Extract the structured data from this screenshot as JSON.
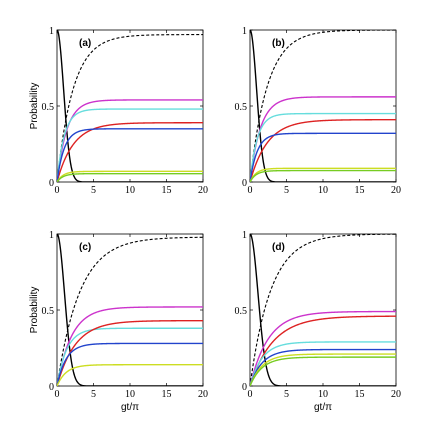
{
  "figure": {
    "ylabel": "Probability",
    "xlabel": "gt/π"
  },
  "chart_data": [
    {
      "type": "line",
      "panel": "(a)",
      "ylabel": "Probability",
      "xlabel": "",
      "xlim": [
        0,
        20
      ],
      "ylim": [
        0,
        1
      ],
      "xticks": [
        0,
        5,
        10,
        15,
        20
      ],
      "yticks": [
        0,
        0.5,
        1
      ],
      "series": [
        {
          "color": "#000000",
          "style": "solid",
          "kind": "decay",
          "plateau": 0.0,
          "rate": 1.1
        },
        {
          "color": "#000000",
          "style": "dotted",
          "kind": "rise",
          "plateau": 0.97,
          "rate": 0.45
        },
        {
          "color": "#cc33cc",
          "style": "solid",
          "kind": "rise",
          "plateau": 0.54,
          "rate": 0.75
        },
        {
          "color": "#66dddd",
          "style": "solid",
          "kind": "rise",
          "plateau": 0.48,
          "rate": 1.0
        },
        {
          "color": "#dd2222",
          "style": "solid",
          "kind": "rise",
          "plateau": 0.39,
          "rate": 0.45
        },
        {
          "color": "#2244cc",
          "style": "solid",
          "kind": "rise",
          "plateau": 0.35,
          "rate": 1.0
        },
        {
          "color": "#ccdd22",
          "style": "solid",
          "kind": "rise",
          "plateau": 0.07,
          "rate": 1.2
        },
        {
          "color": "#77cc22",
          "style": "solid",
          "kind": "rise",
          "plateau": 0.055,
          "rate": 1.2
        }
      ]
    },
    {
      "type": "line",
      "panel": "(b)",
      "ylabel": "",
      "xlabel": "",
      "xlim": [
        0,
        20
      ],
      "ylim": [
        0,
        1
      ],
      "xticks": [
        0,
        5,
        10,
        15,
        20
      ],
      "yticks": [
        0,
        0.5,
        1
      ],
      "series": [
        {
          "color": "#000000",
          "style": "solid",
          "kind": "decay",
          "plateau": 0.0,
          "rate": 1.1
        },
        {
          "color": "#000000",
          "style": "dotted",
          "kind": "rise",
          "plateau": 1.0,
          "rate": 0.42
        },
        {
          "color": "#cc33cc",
          "style": "solid",
          "kind": "rise",
          "plateau": 0.56,
          "rate": 0.7
        },
        {
          "color": "#66dddd",
          "style": "solid",
          "kind": "rise",
          "plateau": 0.45,
          "rate": 1.0
        },
        {
          "color": "#dd2222",
          "style": "solid",
          "kind": "rise",
          "plateau": 0.41,
          "rate": 0.42
        },
        {
          "color": "#2244cc",
          "style": "solid",
          "kind": "rise",
          "plateau": 0.32,
          "rate": 1.0
        },
        {
          "color": "#ccdd22",
          "style": "solid",
          "kind": "rise",
          "plateau": 0.09,
          "rate": 1.2
        },
        {
          "color": "#77cc22",
          "style": "solid",
          "kind": "rise",
          "plateau": 0.075,
          "rate": 1.2
        }
      ]
    },
    {
      "type": "line",
      "panel": "(c)",
      "ylabel": "Probability",
      "xlabel": "gt/π",
      "xlim": [
        0,
        20
      ],
      "ylim": [
        0,
        1
      ],
      "xticks": [
        0,
        5,
        10,
        15,
        20
      ],
      "yticks": [
        0,
        0.5,
        1
      ],
      "series": [
        {
          "color": "#000000",
          "style": "solid",
          "kind": "decay",
          "plateau": 0.0,
          "rate": 0.85
        },
        {
          "color": "#000000",
          "style": "dotted",
          "kind": "rise",
          "plateau": 0.98,
          "rate": 0.32
        },
        {
          "color": "#cc33cc",
          "style": "solid",
          "kind": "rise",
          "plateau": 0.52,
          "rate": 0.5
        },
        {
          "color": "#66dddd",
          "style": "solid",
          "kind": "rise",
          "plateau": 0.38,
          "rate": 0.75
        },
        {
          "color": "#dd2222",
          "style": "solid",
          "kind": "rise",
          "plateau": 0.43,
          "rate": 0.4
        },
        {
          "color": "#2244cc",
          "style": "solid",
          "kind": "rise",
          "plateau": 0.28,
          "rate": 0.8
        },
        {
          "color": "#ccdd22",
          "style": "solid",
          "kind": "rise",
          "plateau": 0.14,
          "rate": 0.8
        }
      ]
    },
    {
      "type": "line",
      "panel": "(d)",
      "ylabel": "",
      "xlabel": "gt/π",
      "xlim": [
        0,
        20
      ],
      "ylim": [
        0,
        1
      ],
      "xticks": [
        0,
        5,
        10,
        15,
        20
      ],
      "yticks": [
        0,
        0.5,
        1
      ],
      "series": [
        {
          "color": "#000000",
          "style": "solid",
          "kind": "decay",
          "plateau": 0.0,
          "rate": 0.75
        },
        {
          "color": "#000000",
          "style": "dotted",
          "kind": "rise",
          "plateau": 1.0,
          "rate": 0.35
        },
        {
          "color": "#cc33cc",
          "style": "solid",
          "kind": "rise",
          "plateau": 0.49,
          "rate": 0.4
        },
        {
          "color": "#dd2222",
          "style": "solid",
          "kind": "rise",
          "plateau": 0.46,
          "rate": 0.32
        },
        {
          "color": "#66dddd",
          "style": "solid",
          "kind": "rise",
          "plateau": 0.29,
          "rate": 0.6
        },
        {
          "color": "#2244cc",
          "style": "solid",
          "kind": "rise",
          "plateau": 0.24,
          "rate": 0.6
        },
        {
          "color": "#ccdd22",
          "style": "solid",
          "kind": "rise",
          "plateau": 0.21,
          "rate": 0.6
        },
        {
          "color": "#77cc22",
          "style": "solid",
          "kind": "rise",
          "plateau": 0.19,
          "rate": 0.6
        }
      ]
    }
  ]
}
